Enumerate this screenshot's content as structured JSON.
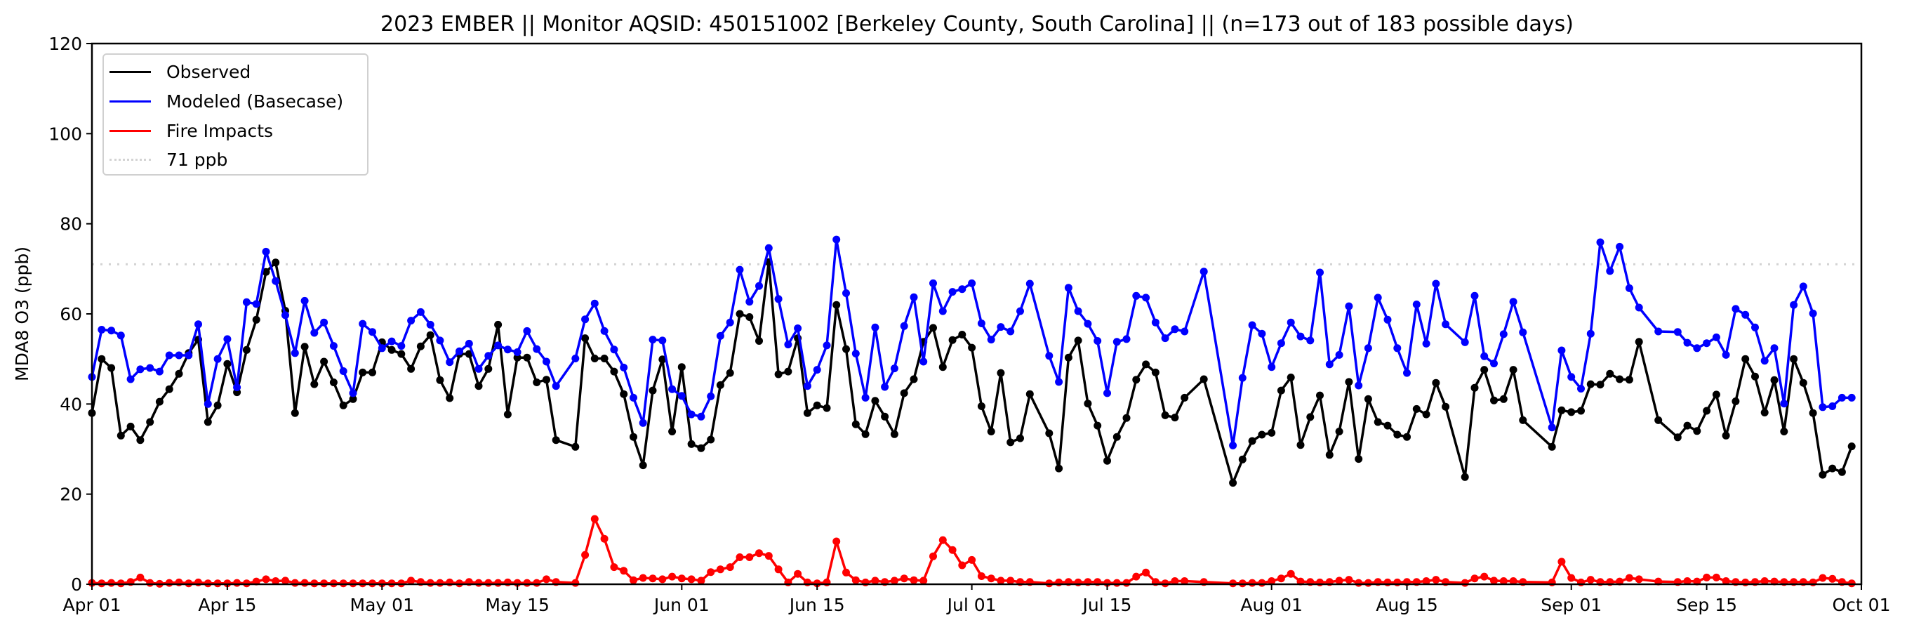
{
  "chart_data": {
    "type": "line",
    "title": "2023 EMBER || Monitor AQSID: 450151002 [Berkeley County, South Carolina] || (n=173 out of 183 possible days)",
    "xlabel": "",
    "ylabel": "MDA8 O3 (ppb)",
    "xlim": [
      "2023-04-01",
      "2023-10-01"
    ],
    "ylim": [
      0,
      120
    ],
    "yticks": [
      "0",
      "20",
      "40",
      "60",
      "80",
      "100",
      "120"
    ],
    "xticks": [
      {
        "date": "2023-04-01",
        "label": "Apr 01"
      },
      {
        "date": "2023-04-15",
        "label": "Apr 15"
      },
      {
        "date": "2023-05-01",
        "label": "May 01"
      },
      {
        "date": "2023-05-15",
        "label": "May 15"
      },
      {
        "date": "2023-06-01",
        "label": "Jun 01"
      },
      {
        "date": "2023-06-15",
        "label": "Jun 15"
      },
      {
        "date": "2023-07-01",
        "label": "Jul 01"
      },
      {
        "date": "2023-07-15",
        "label": "Jul 15"
      },
      {
        "date": "2023-08-01",
        "label": "Aug 01"
      },
      {
        "date": "2023-08-15",
        "label": "Aug 15"
      },
      {
        "date": "2023-09-01",
        "label": "Sep 01"
      },
      {
        "date": "2023-09-15",
        "label": "Sep 15"
      },
      {
        "date": "2023-10-01",
        "label": "Oct 01"
      }
    ],
    "grid": false,
    "legend_position": "top-left",
    "legend": {
      "observed": "Observed",
      "modeled": "Modeled (Basecase)",
      "fire": "Fire Impacts",
      "threshold": "71 ppb"
    },
    "threshold": {
      "value": 71,
      "color": "#d3d3d3",
      "style": "dotted"
    },
    "colors": {
      "observed": "#000000",
      "modeled": "#0000ff",
      "fire": "#ff0000"
    },
    "x": [
      "2023-04-01",
      "2023-04-02",
      "2023-04-03",
      "2023-04-04",
      "2023-04-05",
      "2023-04-06",
      "2023-04-07",
      "2023-04-08",
      "2023-04-09",
      "2023-04-10",
      "2023-04-11",
      "2023-04-12",
      "2023-04-13",
      "2023-04-14",
      "2023-04-15",
      "2023-04-16",
      "2023-04-17",
      "2023-04-18",
      "2023-04-19",
      "2023-04-20",
      "2023-04-21",
      "2023-04-22",
      "2023-04-23",
      "2023-04-24",
      "2023-04-25",
      "2023-04-26",
      "2023-04-27",
      "2023-04-28",
      "2023-04-29",
      "2023-04-30",
      "2023-05-01",
      "2023-05-02",
      "2023-05-03",
      "2023-05-04",
      "2023-05-05",
      "2023-05-06",
      "2023-05-07",
      "2023-05-08",
      "2023-05-09",
      "2023-05-10",
      "2023-05-11",
      "2023-05-12",
      "2023-05-13",
      "2023-05-14",
      "2023-05-15",
      "2023-05-16",
      "2023-05-17",
      "2023-05-18",
      "2023-05-19",
      "2023-05-21",
      "2023-05-22",
      "2023-05-23",
      "2023-05-24",
      "2023-05-25",
      "2023-05-26",
      "2023-05-27",
      "2023-05-28",
      "2023-05-29",
      "2023-05-30",
      "2023-05-31",
      "2023-06-01",
      "2023-06-02",
      "2023-06-03",
      "2023-06-04",
      "2023-06-05",
      "2023-06-06",
      "2023-06-07",
      "2023-06-08",
      "2023-06-09",
      "2023-06-10",
      "2023-06-11",
      "2023-06-12",
      "2023-06-13",
      "2023-06-14",
      "2023-06-15",
      "2023-06-16",
      "2023-06-17",
      "2023-06-18",
      "2023-06-19",
      "2023-06-20",
      "2023-06-21",
      "2023-06-22",
      "2023-06-23",
      "2023-06-24",
      "2023-06-25",
      "2023-06-26",
      "2023-06-27",
      "2023-06-28",
      "2023-06-29",
      "2023-06-30",
      "2023-07-01",
      "2023-07-02",
      "2023-07-03",
      "2023-07-04",
      "2023-07-05",
      "2023-07-06",
      "2023-07-07",
      "2023-07-09",
      "2023-07-10",
      "2023-07-11",
      "2023-07-12",
      "2023-07-13",
      "2023-07-14",
      "2023-07-15",
      "2023-07-16",
      "2023-07-17",
      "2023-07-18",
      "2023-07-19",
      "2023-07-20",
      "2023-07-21",
      "2023-07-22",
      "2023-07-23",
      "2023-07-25",
      "2023-07-28",
      "2023-07-29",
      "2023-07-30",
      "2023-07-31",
      "2023-08-01",
      "2023-08-02",
      "2023-08-03",
      "2023-08-04",
      "2023-08-05",
      "2023-08-06",
      "2023-08-07",
      "2023-08-08",
      "2023-08-09",
      "2023-08-10",
      "2023-08-11",
      "2023-08-12",
      "2023-08-13",
      "2023-08-14",
      "2023-08-15",
      "2023-08-16",
      "2023-08-17",
      "2023-08-18",
      "2023-08-19",
      "2023-08-21",
      "2023-08-22",
      "2023-08-23",
      "2023-08-24",
      "2023-08-25",
      "2023-08-26",
      "2023-08-27",
      "2023-08-30",
      "2023-08-31",
      "2023-09-01",
      "2023-09-02",
      "2023-09-03",
      "2023-09-04",
      "2023-09-05",
      "2023-09-06",
      "2023-09-07",
      "2023-09-08",
      "2023-09-10",
      "2023-09-12",
      "2023-09-13",
      "2023-09-14",
      "2023-09-15",
      "2023-09-16",
      "2023-09-17",
      "2023-09-18",
      "2023-09-19",
      "2023-09-20",
      "2023-09-21",
      "2023-09-22",
      "2023-09-23",
      "2023-09-24",
      "2023-09-25",
      "2023-09-26",
      "2023-09-27",
      "2023-09-28",
      "2023-09-29",
      "2023-09-30"
    ],
    "series": [
      {
        "key": "observed",
        "name": "Observed",
        "values": [
          38,
          50,
          48,
          33,
          35,
          32,
          36,
          40.5,
          43.3,
          46.7,
          51.3,
          54.3,
          36,
          39.7,
          48.9,
          42.6,
          52,
          58.7,
          69.3,
          71.4,
          60.7,
          38,
          52.7,
          44.4,
          49.4,
          44.8,
          39.7,
          41.1,
          47,
          47,
          53.7,
          52,
          51.1,
          47.8,
          52.8,
          55.3,
          45.3,
          41.3,
          51.1,
          51.1,
          44,
          47.8,
          57.6,
          37.7,
          50.3,
          50.3,
          44.8,
          45.4,
          32,
          30.5,
          54.6,
          50.1,
          50.1,
          47.2,
          42.2,
          32.7,
          26.4,
          43,
          49.9,
          33.9,
          48.2,
          31.1,
          30.2,
          32.1,
          44.2,
          46.9,
          60,
          59.3,
          54,
          71.5,
          46.6,
          47.2,
          54.6,
          38,
          39.7,
          39.1,
          62,
          52.2,
          35.5,
          33.3,
          40.7,
          37.2,
          33.3,
          42.4,
          45.5,
          53.8,
          56.9,
          48.2,
          54.2,
          55.4,
          52.5,
          39.5,
          33.9,
          46.9,
          31.5,
          32.4,
          42.2,
          33.5,
          25.7,
          50.3,
          54.1,
          40.1,
          35.2,
          27.4,
          32.7,
          36.9,
          45.4,
          48.8,
          47,
          37.5,
          37,
          41.4,
          45.5,
          22.5,
          27.7,
          31.8,
          33.2,
          33.6,
          43,
          45.9,
          30.9,
          37.1,
          41.9,
          28.7,
          33.9,
          44.9,
          27.8,
          41.1,
          36,
          35.2,
          33.2,
          32.7,
          38.9,
          37.7,
          44.7,
          39.4,
          23.8,
          43.6,
          47.6,
          40.8,
          41.1,
          47.6,
          36.4,
          30.5,
          38.6,
          38.2,
          38.5,
          44.4,
          44.3,
          46.7,
          45.5,
          45.4,
          53.8,
          36.4,
          32.6,
          35.2,
          34,
          38.5,
          42.1,
          33,
          40.6,
          50,
          46.1,
          38.1,
          45.3,
          33.9,
          50,
          44.7,
          38,
          24.3,
          25.7,
          24.9,
          30.6
        ]
      },
      {
        "key": "modeled",
        "name": "Modeled (Basecase)",
        "values": [
          46,
          56.5,
          56.3,
          55.2,
          45.5,
          47.7,
          48,
          47.2,
          50.8,
          50.8,
          50.8,
          57.7,
          40,
          50,
          54.4,
          43.7,
          62.6,
          62.2,
          73.8,
          67.3,
          59.7,
          51.3,
          62.9,
          55.8,
          58.1,
          52.9,
          47.3,
          42.4,
          57.8,
          56,
          52.4,
          53.9,
          52.9,
          58.5,
          60.4,
          57.6,
          54.1,
          49.3,
          51.7,
          53.4,
          47.8,
          50.7,
          53,
          52.1,
          51.5,
          56.2,
          52.2,
          49.4,
          44,
          50.1,
          58.8,
          62.3,
          56.2,
          52.1,
          48.1,
          41.4,
          35.8,
          54.3,
          54.1,
          43.3,
          41.8,
          37.7,
          37.2,
          41.7,
          55.1,
          58.1,
          69.8,
          62.7,
          66.2,
          74.6,
          63.3,
          53.2,
          56.8,
          44,
          47.6,
          53,
          76.5,
          64.6,
          51.2,
          41.4,
          57,
          43.8,
          47.9,
          57.3,
          63.7,
          49.4,
          66.8,
          60.6,
          64.9,
          65.5,
          66.8,
          57.9,
          54.3,
          57.1,
          56.1,
          60.6,
          66.7,
          50.7,
          44.9,
          65.8,
          60.6,
          57.8,
          54,
          42.4,
          53.8,
          54.4,
          64,
          63.6,
          58.1,
          54.6,
          56.6,
          56.1,
          69.4,
          30.8,
          45.8,
          57.5,
          55.6,
          48.2,
          53.5,
          58.1,
          55,
          54.1,
          69.2,
          48.8,
          50.9,
          61.7,
          44.1,
          52.4,
          63.6,
          58.7,
          52.4,
          46.9,
          62.1,
          53.4,
          66.7,
          57.7,
          53.7,
          64,
          50.6,
          49,
          55.5,
          62.7,
          55.9,
          34.8,
          51.9,
          46,
          43.4,
          55.6,
          75.9,
          69.5,
          74.9,
          65.7,
          61.4,
          56.1,
          56,
          53.6,
          52.4,
          53.5,
          54.8,
          50.9,
          61.1,
          59.8,
          57,
          49.6,
          52.4,
          40.1,
          62,
          66.1,
          60.1,
          39.3,
          39.5,
          41.4,
          41.4
        ]
      },
      {
        "key": "fire",
        "name": "Fire Impacts",
        "values": [
          0.3,
          0.2,
          0.3,
          0.2,
          0.5,
          1.5,
          0.3,
          0.1,
          0.3,
          0.4,
          0.2,
          0.4,
          0.2,
          0.2,
          0.2,
          0.3,
          0.2,
          0.6,
          1.1,
          0.7,
          0.8,
          0.3,
          0.3,
          0.2,
          0.2,
          0.2,
          0.2,
          0.2,
          0.2,
          0.2,
          0.2,
          0.2,
          0.2,
          0.8,
          0.5,
          0.3,
          0.3,
          0.4,
          0.2,
          0.5,
          0.3,
          0.3,
          0.3,
          0.4,
          0.3,
          0.3,
          0.3,
          1.1,
          0.5,
          0.3,
          6.5,
          14.5,
          10.1,
          3.8,
          3,
          0.9,
          1.4,
          1.3,
          1.1,
          1.7,
          1.3,
          1.1,
          0.8,
          2.7,
          3.3,
          3.8,
          6,
          6,
          6.9,
          6.3,
          3.3,
          0.4,
          2.3,
          0.4,
          0.2,
          0.4,
          9.5,
          2.6,
          0.9,
          0.4,
          0.8,
          0.5,
          0.8,
          1.3,
          0.9,
          0.8,
          6.2,
          9.8,
          7.6,
          4.2,
          5.4,
          1.8,
          1.3,
          0.8,
          0.8,
          0.5,
          0.5,
          0.2,
          0.4,
          0.5,
          0.4,
          0.5,
          0.5,
          0.3,
          0.3,
          0.3,
          1.7,
          2.6,
          0.5,
          0.2,
          0.7,
          0.7,
          0.5,
          0.2,
          0.2,
          0.3,
          0.3,
          0.7,
          1.3,
          2.3,
          0.6,
          0.5,
          0.4,
          0.5,
          0.8,
          1,
          0.3,
          0.3,
          0.5,
          0.4,
          0.4,
          0.5,
          0.5,
          0.7,
          1,
          0.5,
          0.3,
          1.3,
          1.7,
          0.8,
          0.7,
          0.7,
          0.5,
          0.4,
          5,
          1.4,
          0.4,
          1,
          0.5,
          0.5,
          0.6,
          1.4,
          1.1,
          0.6,
          0.5,
          0.7,
          0.6,
          1.5,
          1.5,
          0.7,
          0.5,
          0.4,
          0.5,
          0.7,
          0.6,
          0.5,
          0.5,
          0.5,
          0.4,
          1.4,
          1.2,
          0.5,
          0.2
        ]
      }
    ]
  }
}
